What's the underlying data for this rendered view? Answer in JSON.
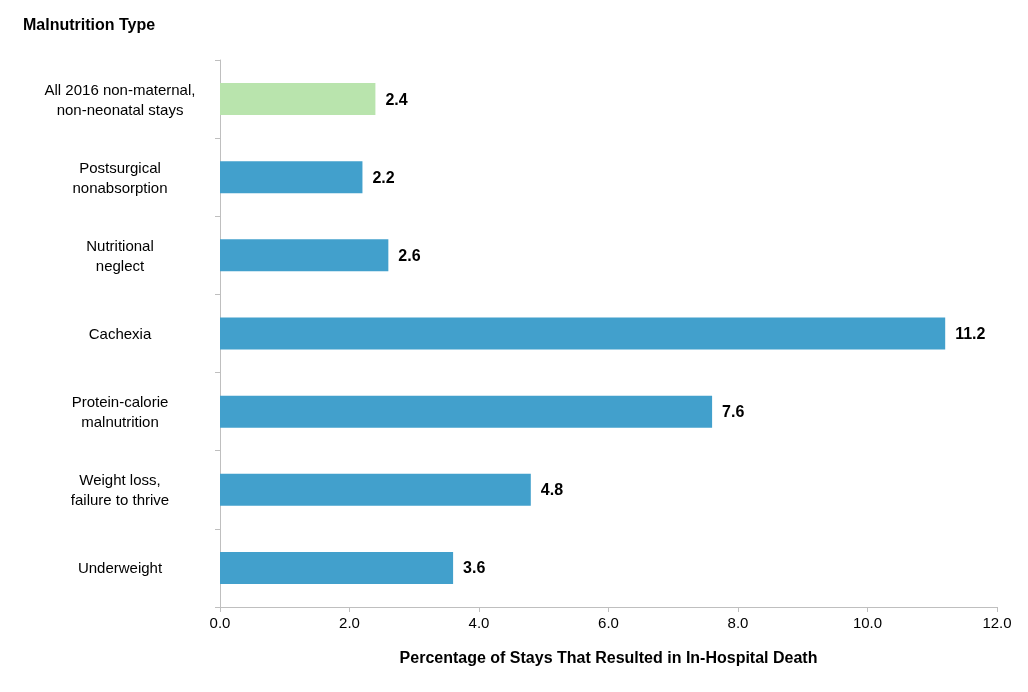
{
  "chart_data": {
    "type": "bar",
    "orientation": "horizontal",
    "ylabel": "Malnutrition Type",
    "xlabel": "Percentage of Stays That Resulted in In-Hospital Death",
    "categories": [
      "All 2016 non-maternal,\nnon-neonatal stays",
      "Postsurgical\nnonabsorption",
      "Nutritional\nneglect",
      "Cachexia",
      "Protein-calorie\nmalnutrition",
      "Weight loss,\nfailure to thrive",
      "Underweight"
    ],
    "values": [
      2.4,
      2.2,
      2.6,
      11.2,
      7.6,
      4.8,
      3.6
    ],
    "colors": [
      "#b9e4ad",
      "#42a0cc",
      "#42a0cc",
      "#42a0cc",
      "#42a0cc",
      "#42a0cc",
      "#42a0cc"
    ],
    "xlim": [
      0,
      12
    ],
    "xticks": [
      {
        "value": 0,
        "label": "0.0"
      },
      {
        "value": 2,
        "label": "2.0"
      },
      {
        "value": 4,
        "label": "4.0"
      },
      {
        "value": 6,
        "label": "6.0"
      },
      {
        "value": 8,
        "label": "8.0"
      },
      {
        "value": 10,
        "label": "10.0"
      },
      {
        "value": 12,
        "label": "12.0"
      }
    ],
    "data_labels": true,
    "grid": false
  }
}
